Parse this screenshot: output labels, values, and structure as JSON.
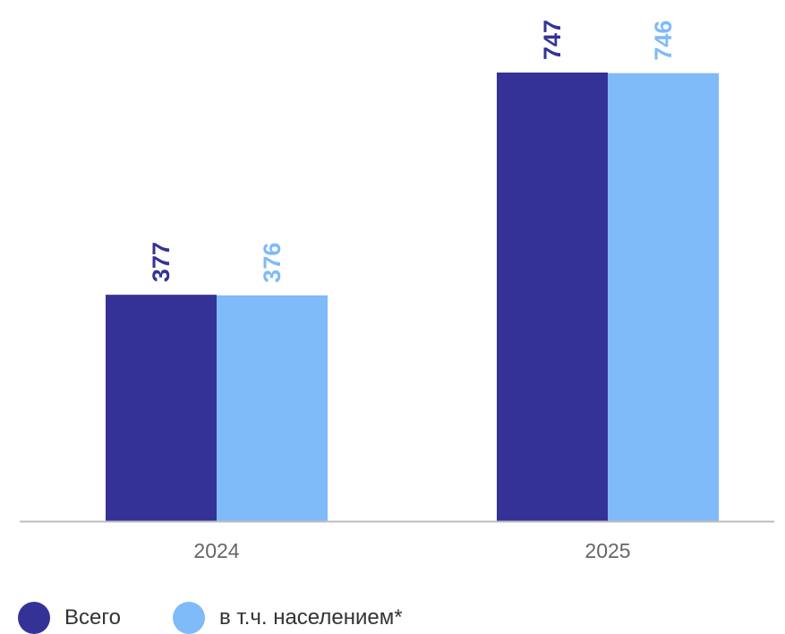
{
  "chart_data": {
    "type": "bar",
    "categories": [
      "2024",
      "2025"
    ],
    "series": [
      {
        "name": "Всего",
        "values": [
          377,
          747
        ],
        "color": "#353297"
      },
      {
        "name": "в т.ч. населением*",
        "values": [
          376,
          746
        ],
        "color": "#7fbaf9"
      }
    ],
    "ylim": [
      0,
      747
    ],
    "grid": false,
    "legend_position": "bottom-left",
    "data_labels": true
  }
}
